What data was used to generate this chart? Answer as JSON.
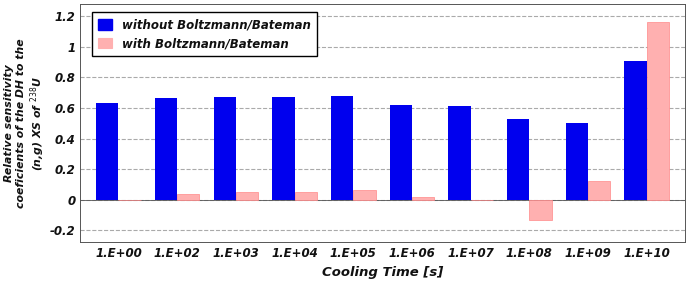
{
  "categories": [
    "1.E+00",
    "1.E+02",
    "1.E+03",
    "1.E+04",
    "1.E+05",
    "1.E+06",
    "1.E+07",
    "1.E+08",
    "1.E+09",
    "1.E+10"
  ],
  "blue_values": [
    0.635,
    0.665,
    0.675,
    0.675,
    0.68,
    0.62,
    0.61,
    0.525,
    0.505,
    0.905
  ],
  "red_values": [
    0.0,
    0.04,
    0.05,
    0.05,
    0.06,
    0.015,
    0.0,
    -0.13,
    0.12,
    1.16
  ],
  "blue_color": "#0000EE",
  "red_color": "#FFB0B0",
  "red_edge_color": "#FF8888",
  "xlabel": "Cooling Time [s]",
  "ylabel_line1": "Relative sensitivity",
  "ylabel_line2": "coeficients of the DH to the",
  "ylabel_line3": "(n,g) XS of",
  "ylabel_sup": "238",
  "ylabel_end": "U",
  "ylim": [
    -0.28,
    1.28
  ],
  "yticks": [
    -0.2,
    0.0,
    0.2,
    0.4,
    0.6,
    0.8,
    1.0,
    1.2
  ],
  "legend_labels": [
    "without Boltzmann/Bateman",
    "with Boltzmann/Bateman"
  ],
  "bar_width": 0.38,
  "background_color": "#FFFFFF"
}
